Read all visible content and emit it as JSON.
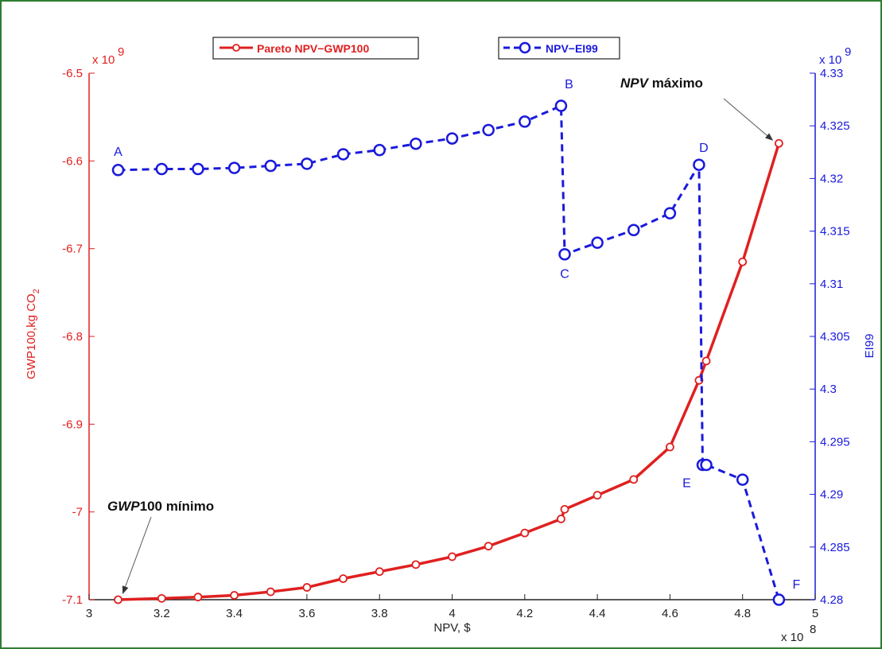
{
  "chart_data": {
    "type": "line",
    "x": {
      "label": "NPV, $",
      "multiplier": "x 10",
      "multiplier_exp": "8",
      "lim": [
        3,
        5
      ],
      "ticks": [
        "3",
        "3.2",
        "3.4",
        "3.6",
        "3.8",
        "4",
        "4.2",
        "4.4",
        "4.6",
        "4.8",
        "5"
      ]
    },
    "y_left": {
      "label": "GWP100,kg CO",
      "label_sub": "2",
      "multiplier": "x 10",
      "multiplier_exp": "9",
      "lim": [
        -7.1,
        -6.5
      ],
      "ticks": [
        "-6.5",
        "-6.6",
        "-6.7",
        "-6.8",
        "-6.9",
        "-7",
        "-7.1"
      ],
      "color": "#e02020"
    },
    "y_right": {
      "label": "EI99",
      "multiplier": "x 10",
      "multiplier_exp": "9",
      "lim": [
        4.28,
        4.33
      ],
      "ticks": [
        "4.33",
        "4.325",
        "4.32",
        "4.315",
        "4.31",
        "4.305",
        "4.3",
        "4.295",
        "4.29",
        "4.285",
        "4.28"
      ],
      "color": "#1a1adb"
    },
    "series": [
      {
        "name": "Pareto NPV−GWP100",
        "axis": "left",
        "style": "solid",
        "color": "#e02020",
        "x": [
          3.08,
          3.2,
          3.3,
          3.4,
          3.5,
          3.6,
          3.7,
          3.8,
          3.9,
          4.0,
          4.1,
          4.2,
          4.3,
          4.31,
          4.4,
          4.5,
          4.6,
          4.68,
          4.7,
          4.8,
          4.9
        ],
        "y": [
          -7.1,
          -7.0985,
          -7.097,
          -7.095,
          -7.091,
          -7.086,
          -7.076,
          -7.068,
          -7.06,
          -7.051,
          -7.039,
          -7.024,
          -7.008,
          -6.997,
          -6.981,
          -6.963,
          -6.926,
          -6.85,
          -6.828,
          -6.715,
          -6.58
        ]
      },
      {
        "name": "NPV−EI99",
        "axis": "right",
        "style": "dashed",
        "color": "#1a1adb",
        "x": [
          3.08,
          3.2,
          3.3,
          3.4,
          3.5,
          3.6,
          3.7,
          3.8,
          3.9,
          4.0,
          4.1,
          4.2,
          4.3,
          4.31,
          4.4,
          4.5,
          4.6,
          4.68,
          4.69,
          4.7,
          4.8,
          4.9
        ],
        "y": [
          4.3208,
          4.3209,
          4.3209,
          4.321,
          4.3212,
          4.3214,
          4.3223,
          4.3227,
          4.3233,
          4.3238,
          4.3246,
          4.3254,
          4.3269,
          4.3128,
          4.3139,
          4.3151,
          4.3167,
          4.3213,
          4.2928,
          4.2928,
          4.2914,
          4.28
        ]
      }
    ],
    "point_labels": [
      {
        "text": "A",
        "x": 3.08,
        "y": 4.3208
      },
      {
        "text": "B",
        "x": 4.3,
        "y": 4.3269
      },
      {
        "text": "C",
        "x": 4.31,
        "y": 4.3128
      },
      {
        "text": "D",
        "x": 4.68,
        "y": 4.3213
      },
      {
        "text": "E",
        "x": 4.69,
        "y": 4.2928
      },
      {
        "text": "F",
        "x": 4.9,
        "y": 4.28
      }
    ],
    "annotations": [
      {
        "prefix": "NPV",
        "suffix": " máximo",
        "x": 4.9,
        "y": -6.58,
        "axis": "left"
      },
      {
        "prefix": "GWP",
        "suffix": "100 mínimo",
        "x": 3.08,
        "y": -7.1,
        "axis": "left"
      }
    ],
    "legend_placement": "top"
  }
}
